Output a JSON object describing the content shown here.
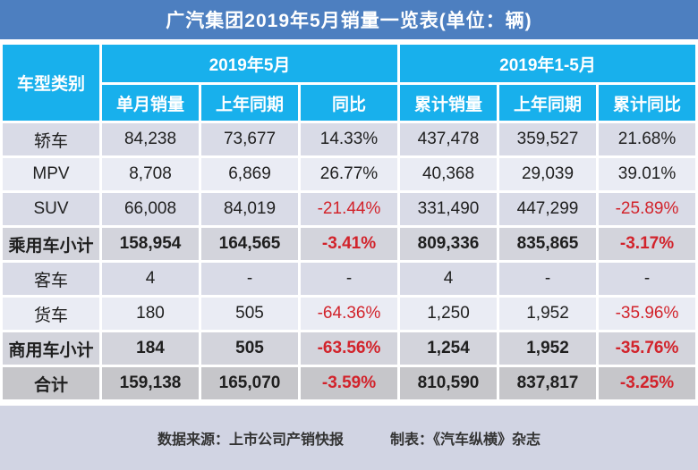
{
  "title": "广汽集团2019年5月销量一览表(单位：辆)",
  "chart_data": {
    "type": "table",
    "title": "广汽集团2019年5月销量一览表(单位：辆)",
    "category_column": "车型类别",
    "column_groups": [
      "2019年5月",
      "2019年1-5月"
    ],
    "columns": [
      "单月销量",
      "上年同期",
      "同比",
      "累计销量",
      "上年同期",
      "累计同比"
    ],
    "rows": [
      {
        "label": "轿车",
        "variant": "odd",
        "values": [
          "84,238",
          "73,677",
          "14.33%",
          "437,478",
          "359,527",
          "21.68%"
        ]
      },
      {
        "label": "MPV",
        "variant": "even",
        "values": [
          "8,708",
          "6,869",
          "26.77%",
          "40,368",
          "29,039",
          "39.01%"
        ]
      },
      {
        "label": "SUV",
        "variant": "odd",
        "values": [
          "66,008",
          "84,019",
          "-21.44%",
          "331,490",
          "447,299",
          "-25.89%"
        ]
      },
      {
        "label": "乘用车小计",
        "variant": "subtotal",
        "values": [
          "158,954",
          "164,565",
          "-3.41%",
          "809,336",
          "835,865",
          "-3.17%"
        ]
      },
      {
        "label": "客车",
        "variant": "odd",
        "values": [
          "4",
          "-",
          "-",
          "4",
          "-",
          "-"
        ]
      },
      {
        "label": "货车",
        "variant": "even",
        "values": [
          "180",
          "505",
          "-64.36%",
          "1,250",
          "1,952",
          "-35.96%"
        ]
      },
      {
        "label": "商用车小计",
        "variant": "subtotal",
        "values": [
          "184",
          "505",
          "-63.56%",
          "1,254",
          "1,952",
          "-35.76%"
        ]
      },
      {
        "label": "合计",
        "variant": "total",
        "values": [
          "159,138",
          "165,070",
          "-3.59%",
          "810,590",
          "837,817",
          "-3.25%"
        ]
      }
    ]
  },
  "footer": {
    "source": "数据来源：上市公司产销快报",
    "maker": "制表：《汽车纵横》杂志"
  },
  "colors": {
    "page_bg": "#ffffff",
    "title_bar": "#4d7fc0",
    "header_bg": "#18b0ec",
    "text_light": "#ffffff",
    "text_dark": "#1f1f1f",
    "negative": "#d2232b",
    "row_odd": "#d9dbe7",
    "row_even": "#eaecf4",
    "row_subtotal": "#d3d4dc",
    "row_total": "#c6c6ca",
    "footer_bg": "#d1d4e3"
  }
}
